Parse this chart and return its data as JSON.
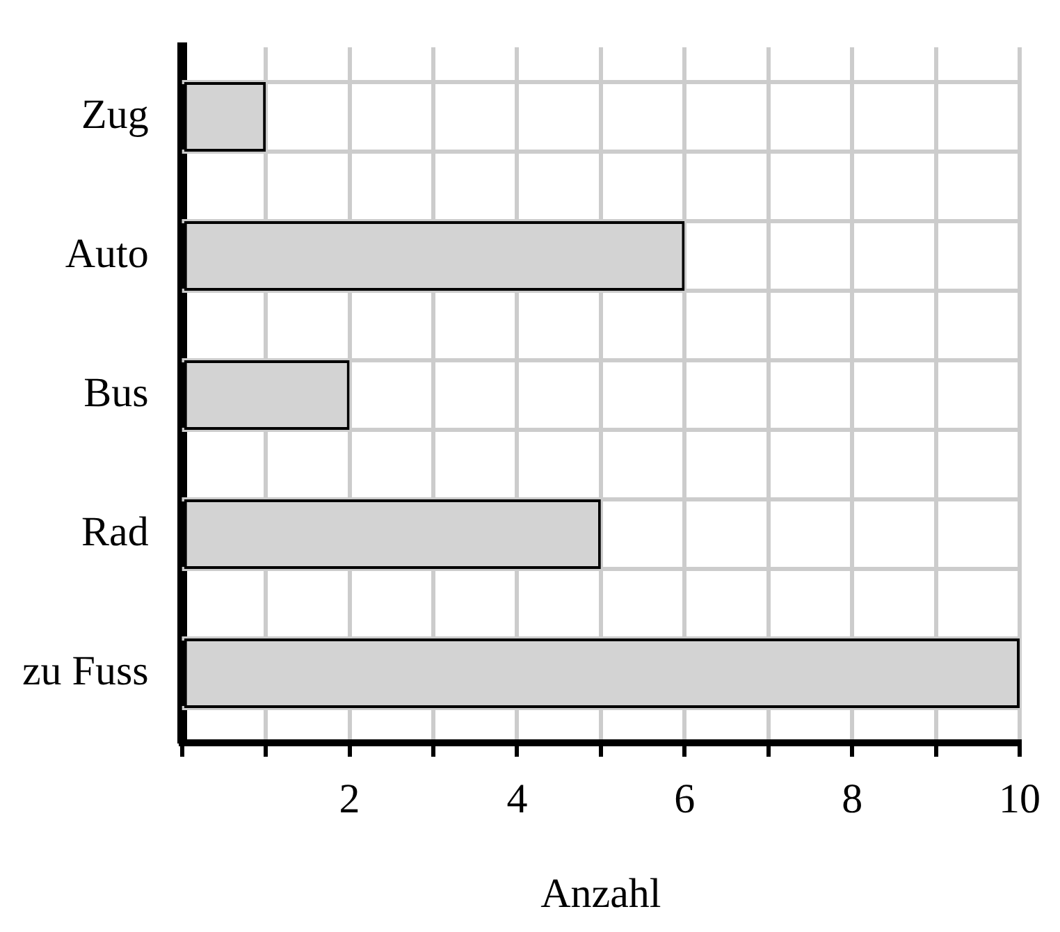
{
  "chart_data": {
    "type": "bar",
    "orientation": "horizontal",
    "xlabel": "Anzahl",
    "categories": [
      "Zug",
      "Auto",
      "Bus",
      "Rad",
      "zu Fuss"
    ],
    "values": [
      1,
      6,
      2,
      5,
      10
    ],
    "color": "#d3d3d3",
    "xlim": [
      0,
      10
    ],
    "xticks": [
      {
        "value": 0,
        "label": null
      },
      {
        "value": 1,
        "label": null
      },
      2,
      {
        "value": 3,
        "label": null
      },
      4,
      {
        "value": 5,
        "label": null
      },
      6,
      {
        "value": 7,
        "label": null
      },
      8,
      {
        "value": 9,
        "label": null
      },
      10
    ],
    "grid": true,
    "legend": false
  }
}
